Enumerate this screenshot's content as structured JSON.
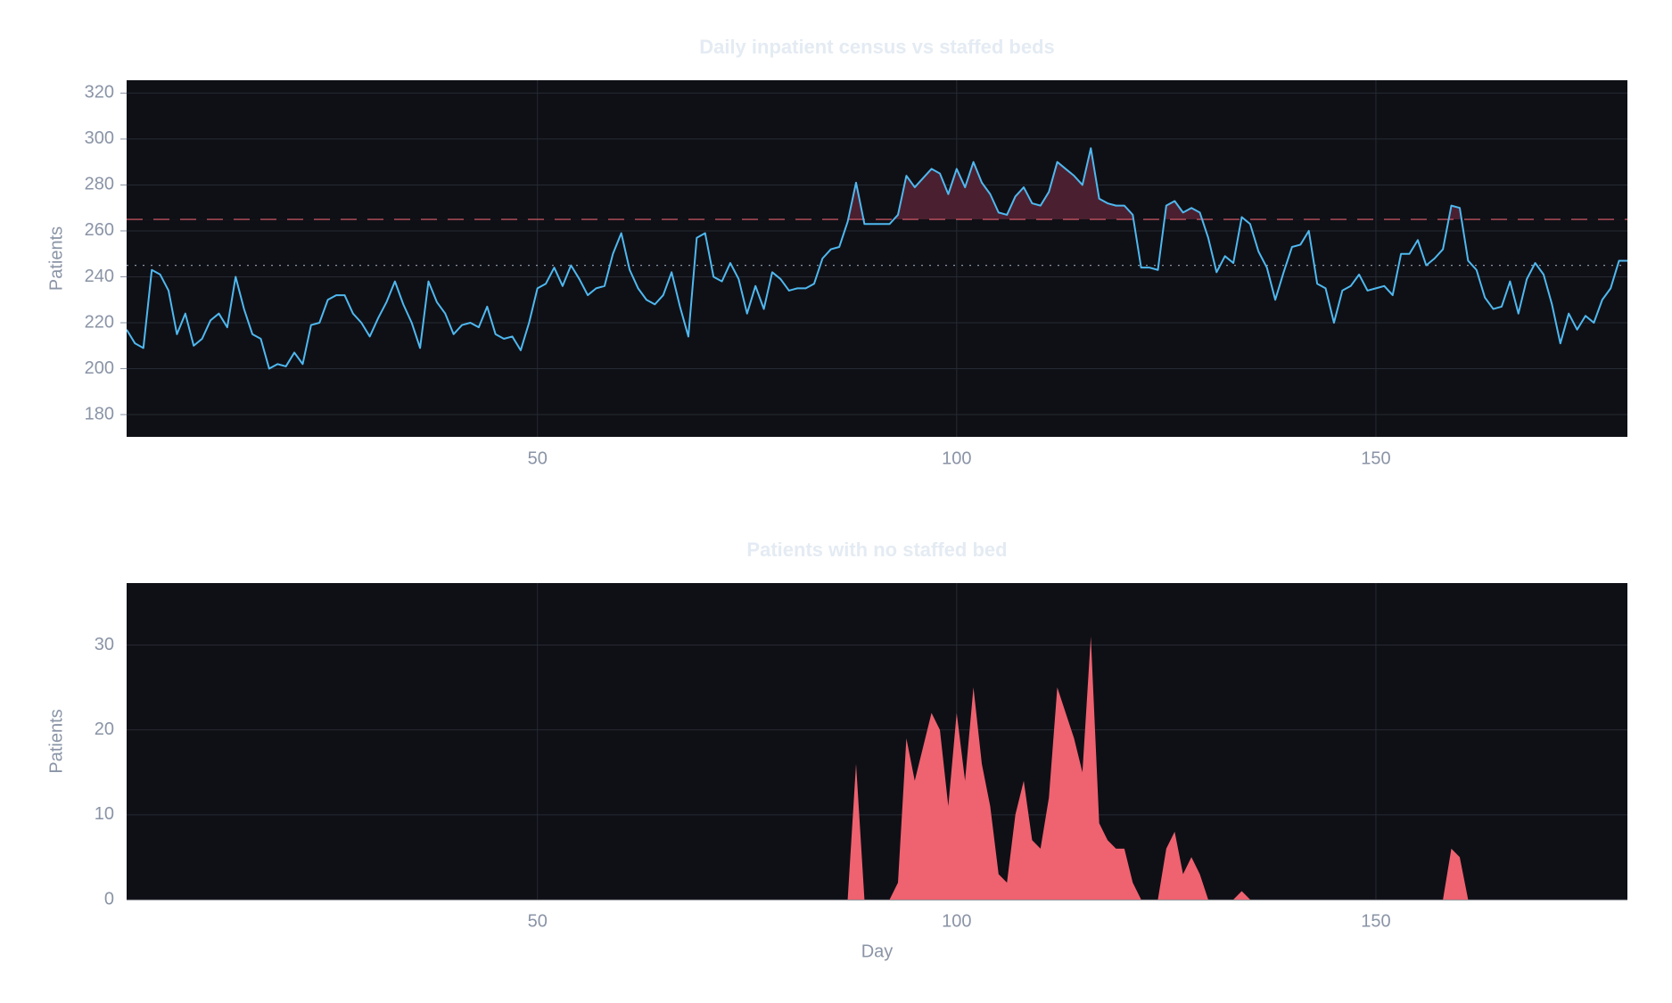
{
  "chart_data": [
    {
      "type": "line",
      "title": "Daily inpatient census vs staffed beds",
      "y_label": "Patients",
      "x": [
        1,
        2,
        3,
        4,
        5,
        6,
        7,
        8,
        9,
        10,
        11,
        12,
        13,
        14,
        15,
        16,
        17,
        18,
        19,
        20,
        21,
        22,
        23,
        24,
        25,
        26,
        27,
        28,
        29,
        30,
        31,
        32,
        33,
        34,
        35,
        36,
        37,
        38,
        39,
        40,
        41,
        42,
        43,
        44,
        45,
        46,
        47,
        48,
        49,
        50,
        51,
        52,
        53,
        54,
        55,
        56,
        57,
        58,
        59,
        60,
        61,
        62,
        63,
        64,
        65,
        66,
        67,
        68,
        69,
        70,
        71,
        72,
        73,
        74,
        75,
        76,
        77,
        78,
        79,
        80,
        81,
        82,
        83,
        84,
        85,
        86,
        87,
        88,
        89,
        90,
        91,
        92,
        93,
        94,
        95,
        96,
        97,
        98,
        99,
        100,
        101,
        102,
        103,
        104,
        105,
        106,
        107,
        108,
        109,
        110,
        111,
        112,
        113,
        114,
        115,
        116,
        117,
        118,
        119,
        120,
        121,
        122,
        123,
        124,
        125,
        126,
        127,
        128,
        129,
        130,
        131,
        132,
        133,
        134,
        135,
        136,
        137,
        138,
        139,
        140,
        141,
        142,
        143,
        144,
        145,
        146,
        147,
        148,
        149,
        150,
        151,
        152,
        153,
        154,
        155,
        156,
        157,
        158,
        159,
        160,
        161,
        162,
        163,
        164,
        165,
        166,
        167,
        168,
        169,
        170,
        171,
        172,
        173,
        174,
        175,
        176,
        177,
        178,
        179,
        180
      ],
      "values": [
        217,
        211,
        209,
        243,
        241,
        234,
        215,
        224,
        210,
        213,
        221,
        224,
        218,
        240,
        226,
        215,
        213,
        200,
        202,
        201,
        207,
        202,
        219,
        220,
        230,
        232,
        232,
        224,
        220,
        214,
        222,
        229,
        238,
        228,
        220,
        209,
        238,
        229,
        224,
        215,
        219,
        220,
        218,
        227,
        215,
        213,
        214,
        208,
        220,
        235,
        237,
        244,
        236,
        245,
        239,
        232,
        235,
        236,
        250,
        259,
        243,
        235,
        230,
        228,
        232,
        242,
        227,
        214,
        257,
        259,
        240,
        238,
        246,
        239,
        224,
        236,
        226,
        242,
        239,
        234,
        235,
        235,
        237,
        248,
        252,
        253,
        264,
        281,
        263,
        263,
        263,
        263,
        267,
        284,
        279,
        283,
        287,
        285,
        276,
        287,
        279,
        290,
        281,
        276,
        268,
        267,
        275,
        279,
        272,
        271,
        277,
        290,
        287,
        284,
        280,
        296,
        274,
        272,
        271,
        271,
        267,
        244,
        244,
        243,
        271,
        273,
        268,
        270,
        268,
        257,
        242,
        249,
        246,
        266,
        263,
        251,
        244,
        230,
        242,
        253,
        254,
        260,
        237,
        235,
        220,
        234,
        236,
        241,
        234,
        235,
        236,
        232,
        250,
        250,
        256,
        245,
        248,
        252,
        271,
        270,
        247,
        243,
        231,
        226,
        227,
        238,
        224,
        239,
        246,
        241,
        228,
        211,
        224,
        217,
        223,
        220,
        230,
        235,
        247,
        247
      ],
      "color": "#4fb8ef",
      "xlim": [
        1,
        180
      ],
      "ylim": [
        170.3,
        325.6
      ],
      "xticks": [
        50,
        100,
        150
      ],
      "yticks": [
        180,
        200,
        220,
        240,
        260,
        280,
        300,
        320
      ],
      "grid": true,
      "hlines": [
        {
          "value": 265,
          "color": "#e0606c",
          "dash": "dash",
          "fill_above": "#4a2030"
        },
        {
          "value": 245,
          "color": "#8a94a6",
          "dash": "dot"
        }
      ]
    },
    {
      "type": "area",
      "title": "Patients with no staffed bed",
      "y_label": "Patients",
      "x_label": "Day",
      "x": [
        1,
        2,
        3,
        4,
        5,
        6,
        7,
        8,
        9,
        10,
        11,
        12,
        13,
        14,
        15,
        16,
        17,
        18,
        19,
        20,
        21,
        22,
        23,
        24,
        25,
        26,
        27,
        28,
        29,
        30,
        31,
        32,
        33,
        34,
        35,
        36,
        37,
        38,
        39,
        40,
        41,
        42,
        43,
        44,
        45,
        46,
        47,
        48,
        49,
        50,
        51,
        52,
        53,
        54,
        55,
        56,
        57,
        58,
        59,
        60,
        61,
        62,
        63,
        64,
        65,
        66,
        67,
        68,
        69,
        70,
        71,
        72,
        73,
        74,
        75,
        76,
        77,
        78,
        79,
        80,
        81,
        82,
        83,
        84,
        85,
        86,
        87,
        88,
        89,
        90,
        91,
        92,
        93,
        94,
        95,
        96,
        97,
        98,
        99,
        100,
        101,
        102,
        103,
        104,
        105,
        106,
        107,
        108,
        109,
        110,
        111,
        112,
        113,
        114,
        115,
        116,
        117,
        118,
        119,
        120,
        121,
        122,
        123,
        124,
        125,
        126,
        127,
        128,
        129,
        130,
        131,
        132,
        133,
        134,
        135,
        136,
        137,
        138,
        139,
        140,
        141,
        142,
        143,
        144,
        145,
        146,
        147,
        148,
        149,
        150,
        151,
        152,
        153,
        154,
        155,
        156,
        157,
        158,
        159,
        160,
        161,
        162,
        163,
        164,
        165,
        166,
        167,
        168,
        169,
        170,
        171,
        172,
        173,
        174,
        175,
        176,
        177,
        178,
        179,
        180
      ],
      "values": [
        0,
        0,
        0,
        0,
        0,
        0,
        0,
        0,
        0,
        0,
        0,
        0,
        0,
        0,
        0,
        0,
        0,
        0,
        0,
        0,
        0,
        0,
        0,
        0,
        0,
        0,
        0,
        0,
        0,
        0,
        0,
        0,
        0,
        0,
        0,
        0,
        0,
        0,
        0,
        0,
        0,
        0,
        0,
        0,
        0,
        0,
        0,
        0,
        0,
        0,
        0,
        0,
        0,
        0,
        0,
        0,
        0,
        0,
        0,
        0,
        0,
        0,
        0,
        0,
        0,
        0,
        0,
        0,
        0,
        0,
        0,
        0,
        0,
        0,
        0,
        0,
        0,
        0,
        0,
        0,
        0,
        0,
        0,
        0,
        0,
        0,
        0,
        16,
        0,
        0,
        0,
        0,
        2,
        19,
        14,
        18,
        22,
        20,
        11,
        22,
        14,
        25,
        16,
        11,
        3,
        2,
        10,
        14,
        7,
        6,
        12,
        25,
        22,
        19,
        15,
        31,
        9,
        7,
        6,
        6,
        2,
        0,
        0,
        0,
        6,
        8,
        3,
        5,
        3,
        0,
        0,
        0,
        0,
        1,
        0,
        0,
        0,
        0,
        0,
        0,
        0,
        0,
        0,
        0,
        0,
        0,
        0,
        0,
        0,
        0,
        0,
        0,
        0,
        0,
        0,
        0,
        0,
        0,
        6,
        5,
        0,
        0,
        0,
        0,
        0,
        0,
        0,
        0,
        0,
        0,
        0,
        0,
        0,
        0,
        0,
        0,
        0,
        0,
        0,
        0
      ],
      "color": "#ef6270",
      "xlim": [
        1,
        180
      ],
      "ylim": [
        0,
        37.3
      ],
      "xticks": [
        50,
        100,
        150
      ],
      "yticks": [
        0,
        10,
        20,
        30
      ],
      "grid": true
    }
  ]
}
